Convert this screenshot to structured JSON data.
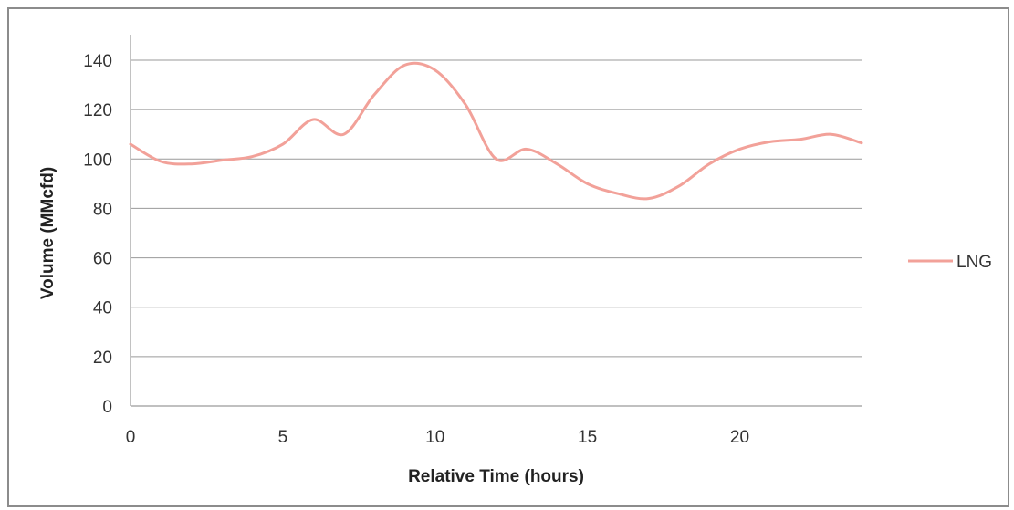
{
  "colors": {
    "series": "#f2a199",
    "gridline": "#9a9a9a",
    "axis": "#9a9a9a",
    "frame": "#8c8c8c"
  },
  "chart_data": {
    "type": "line",
    "title": "",
    "xlabel": "Relative Time (hours)",
    "ylabel": "Volume (MMcfd)",
    "xlim": [
      0,
      24
    ],
    "ylim": [
      0,
      140
    ],
    "xticks": [
      0,
      5,
      10,
      15,
      20
    ],
    "yticks": [
      0,
      20,
      40,
      60,
      80,
      100,
      120,
      140
    ],
    "grid": "horizontal",
    "legend_position": "right",
    "series": [
      {
        "name": "LNG",
        "x": [
          0,
          1,
          2,
          3,
          4,
          5,
          6,
          7,
          8,
          9,
          10,
          11,
          12,
          13,
          14,
          15,
          16,
          17,
          18,
          19,
          20,
          21,
          22,
          23,
          24
        ],
        "y": [
          106,
          99,
          98,
          99.5,
          101,
          106,
          116,
          110,
          126,
          138,
          136,
          122,
          100,
          104,
          98,
          90,
          86,
          84,
          89,
          98,
          104,
          107,
          108,
          110,
          106.5
        ]
      }
    ]
  }
}
